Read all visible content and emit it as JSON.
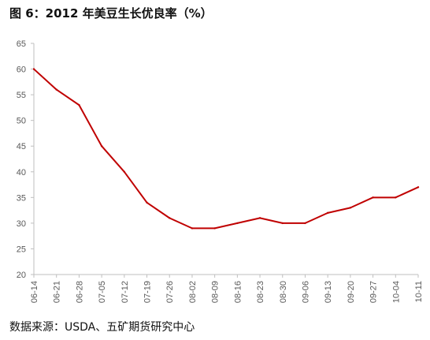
{
  "title": "图 6：2012 年美豆生长优良率（%）",
  "source": "数据来源：USDA、五矿期货研究中心",
  "chart_data": {
    "type": "line",
    "title": "图 6：2012 年美豆生长优良率（%）",
    "categories": [
      "06-14",
      "06-21",
      "06-28",
      "07-05",
      "07-12",
      "07-19",
      "07-26",
      "08-02",
      "08-09",
      "08-16",
      "08-23",
      "08-30",
      "09-06",
      "09-13",
      "09-20",
      "09-27",
      "10-04",
      "10-11"
    ],
    "series": [
      {
        "values": [
          60,
          56,
          53,
          45,
          40,
          34,
          31,
          29,
          29,
          30,
          31,
          30,
          30,
          32,
          33,
          35,
          35,
          37
        ],
        "color": "#C00000"
      }
    ],
    "ylim": [
      20,
      65
    ],
    "yticks": [
      20,
      25,
      30,
      35,
      40,
      45,
      50,
      55,
      60,
      65
    ],
    "grid": false,
    "axis_color": "#BFBFBF"
  }
}
